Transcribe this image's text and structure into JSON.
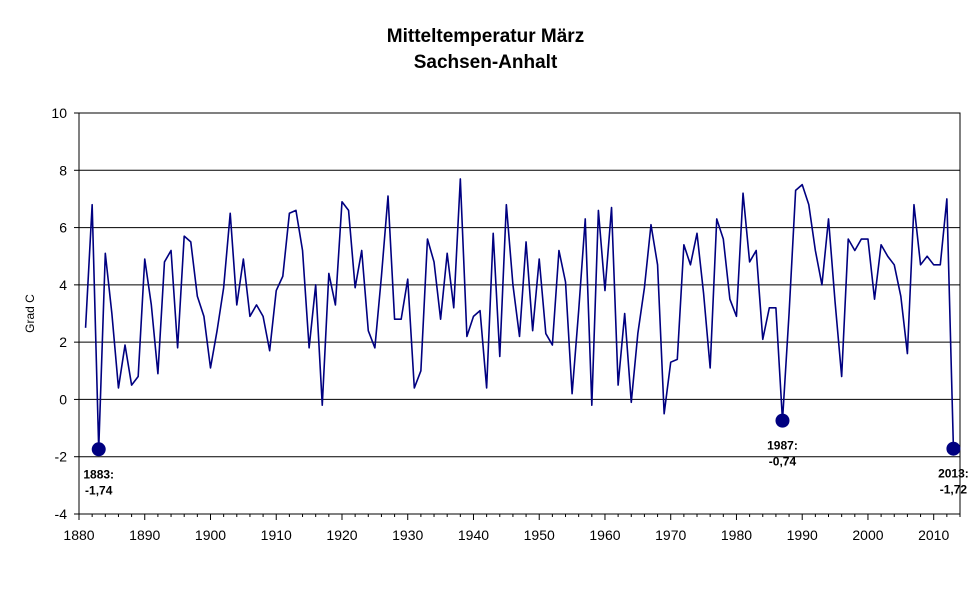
{
  "chart_data": {
    "type": "line",
    "title": "Mitteltemperatur März",
    "subtitle": "Sachsen-Anhalt",
    "xlabel": "",
    "ylabel": "Grad C",
    "xlim": [
      1880,
      2014
    ],
    "ylim": [
      -4,
      10
    ],
    "xticks": [
      1880,
      1890,
      1900,
      1910,
      1920,
      1930,
      1940,
      1950,
      1960,
      1970,
      1980,
      1990,
      2000,
      2010
    ],
    "yticks": [
      -4,
      -2,
      0,
      2,
      4,
      6,
      8,
      10
    ],
    "grid": "horizontal",
    "legend": "none",
    "line_color": "#000080",
    "series": [
      {
        "x": [
          1881,
          1882,
          1883,
          1884,
          1885,
          1886,
          1887,
          1888,
          1889,
          1890,
          1891,
          1892,
          1893,
          1894,
          1895,
          1896,
          1897,
          1898,
          1899,
          1900,
          1901,
          1902,
          1903,
          1904,
          1905,
          1906,
          1907,
          1908,
          1909,
          1910,
          1911,
          1912,
          1913,
          1914,
          1915,
          1916,
          1917,
          1918,
          1919,
          1920,
          1921,
          1922,
          1923,
          1924,
          1925,
          1926,
          1927,
          1928,
          1929,
          1930,
          1931,
          1932,
          1933,
          1934,
          1935,
          1936,
          1937,
          1938,
          1939,
          1940,
          1941,
          1942,
          1943,
          1944,
          1945,
          1946,
          1947,
          1948,
          1949,
          1950,
          1951,
          1952,
          1953,
          1954,
          1955,
          1956,
          1957,
          1958,
          1959,
          1960,
          1961,
          1962,
          1963,
          1964,
          1965,
          1966,
          1967,
          1968,
          1969,
          1970,
          1971,
          1972,
          1973,
          1974,
          1975,
          1976,
          1977,
          1978,
          1979,
          1980,
          1981,
          1982,
          1983,
          1984,
          1985,
          1986,
          1987,
          1988,
          1989,
          1990,
          1991,
          1992,
          1993,
          1994,
          1995,
          1996,
          1997,
          1998,
          1999,
          2000,
          2001,
          2002,
          2003,
          2004,
          2005,
          2006,
          2007,
          2008,
          2009,
          2010,
          2011,
          2012,
          2013
        ],
        "values": [
          2.5,
          6.8,
          -1.74,
          5.1,
          3.0,
          0.4,
          1.9,
          0.5,
          0.8,
          4.9,
          3.3,
          0.9,
          4.8,
          5.2,
          1.8,
          5.7,
          5.5,
          3.6,
          2.9,
          1.1,
          2.4,
          3.9,
          6.5,
          3.3,
          4.9,
          2.9,
          3.3,
          2.9,
          1.7,
          3.8,
          4.3,
          6.5,
          6.6,
          5.2,
          1.8,
          4.0,
          -0.2,
          4.4,
          3.3,
          6.9,
          6.6,
          3.9,
          5.2,
          2.4,
          1.8,
          4.3,
          7.1,
          2.8,
          2.8,
          4.2,
          0.4,
          1.0,
          5.6,
          4.8,
          2.8,
          5.1,
          3.2,
          7.7,
          2.2,
          2.9,
          3.1,
          0.4,
          5.8,
          1.5,
          6.8,
          4.0,
          2.2,
          5.5,
          2.4,
          4.9,
          2.3,
          1.9,
          5.2,
          4.1,
          0.2,
          3.1,
          6.3,
          -0.2,
          6.6,
          3.8,
          6.7,
          0.5,
          3.0,
          -0.1,
          2.3,
          3.9,
          6.1,
          4.7,
          -0.5,
          1.3,
          1.4,
          5.4,
          4.7,
          5.8,
          3.7,
          1.1,
          6.3,
          5.6,
          3.5,
          2.9,
          7.2,
          4.8,
          5.2,
          2.1,
          3.2,
          3.2,
          -0.74,
          3.0,
          7.3,
          7.5,
          6.8,
          5.2,
          4.0,
          6.3,
          3.4,
          0.8,
          5.6,
          5.2,
          5.6,
          5.6,
          3.5,
          5.4,
          5.0,
          4.7,
          3.6,
          1.6,
          6.8,
          4.7,
          5.0,
          4.7,
          4.7,
          7.0,
          -1.72
        ]
      }
    ],
    "annotations": [
      {
        "year": 1883,
        "value": -1.74,
        "text_line1": "1883:",
        "text_line2": "-1,74"
      },
      {
        "year": 1987,
        "value": -0.74,
        "text_line1": "1987:",
        "text_line2": "-0,74"
      },
      {
        "year": 2013,
        "value": -1.72,
        "text_line1": "2013:",
        "text_line2": "-1,72"
      }
    ]
  }
}
